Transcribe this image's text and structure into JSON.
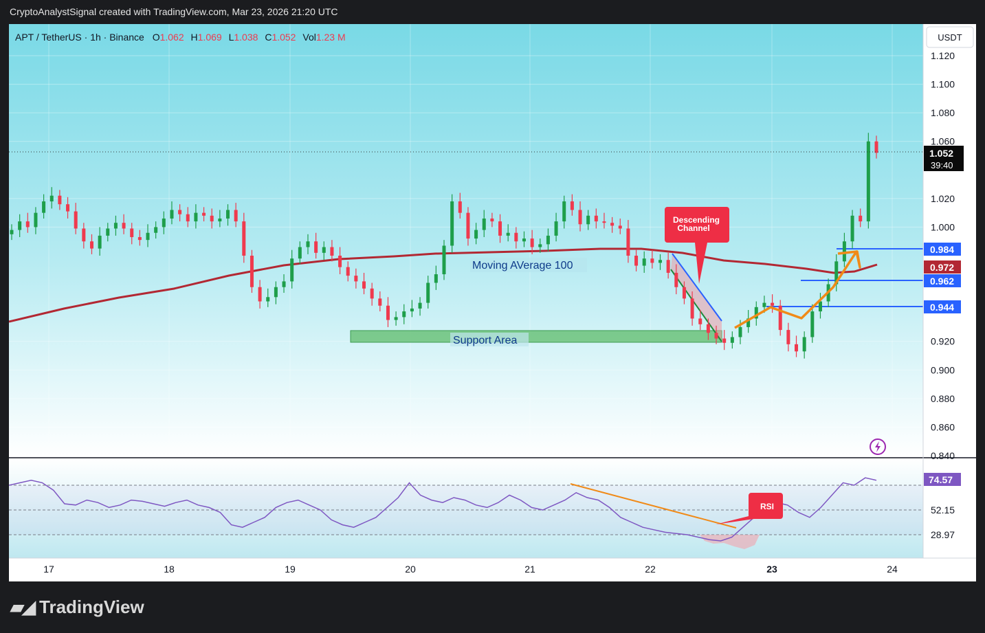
{
  "header": {
    "text": "CryptoAnalystSignal created with TradingView.com, Mar 23, 2026 21:20 UTC"
  },
  "legend": {
    "symbol": "APT / TetherUS · 1h · Binance",
    "open_label": "O",
    "open": "1.062",
    "high_label": "H",
    "high": "1.069",
    "low_label": "L",
    "low": "1.038",
    "close_label": "C",
    "close": "1.052",
    "vol_label": "Vol",
    "vol": "1.23 M"
  },
  "currency_button": "USDT",
  "price_axis": {
    "ticks": [
      "1.120",
      "1.100",
      "1.080",
      "1.060",
      "1.020",
      "1.000",
      "0.920",
      "0.900",
      "0.880",
      "0.860",
      "0.840"
    ]
  },
  "last_price": {
    "value": "1.052",
    "countdown": "39:40"
  },
  "price_tags": [
    {
      "value": "0.984",
      "color": "#2962ff"
    },
    {
      "value": "0.972",
      "color": "#b22833"
    },
    {
      "value": "0.962",
      "color": "#2962ff"
    },
    {
      "value": "0.944",
      "color": "#2962ff"
    }
  ],
  "annotations": {
    "ma_label": "Moving AVerage 100",
    "support_label": "Support Area",
    "channel_label_1": "Descending",
    "channel_label_2": "Channel",
    "rsi_label": "RSI"
  },
  "rsi_axis": {
    "ticks": [
      "74.57",
      "52.15",
      "28.97"
    ]
  },
  "time_axis": {
    "ticks": [
      "17",
      "18",
      "19",
      "20",
      "21",
      "22",
      "23",
      "24"
    ]
  },
  "footer": {
    "brand": "TradingView"
  },
  "colors": {
    "up": "#1e9e4a",
    "down": "#ef3a4e",
    "ma": "#b22833",
    "rsi": "#7e57c2",
    "bg_top": "#79d9e6"
  },
  "chart_data": {
    "type": "candlestick",
    "symbol": "APT / TetherUS",
    "interval": "1h",
    "ylim": [
      0.84,
      1.12
    ],
    "x_ticks": [
      "17",
      "18",
      "19",
      "20",
      "21",
      "22",
      "23",
      "24"
    ],
    "last_candle": {
      "open": 1.062,
      "high": 1.069,
      "low": 1.038,
      "close": 1.052
    },
    "horizontal_levels": [
      0.984,
      0.962,
      0.944
    ],
    "moving_average": {
      "name": "Moving AVerage 100",
      "last": 0.972
    },
    "support_zone": [
      0.918,
      0.925
    ],
    "rsi": {
      "last": 74.57,
      "levels": [
        70,
        50,
        30
      ]
    }
  }
}
